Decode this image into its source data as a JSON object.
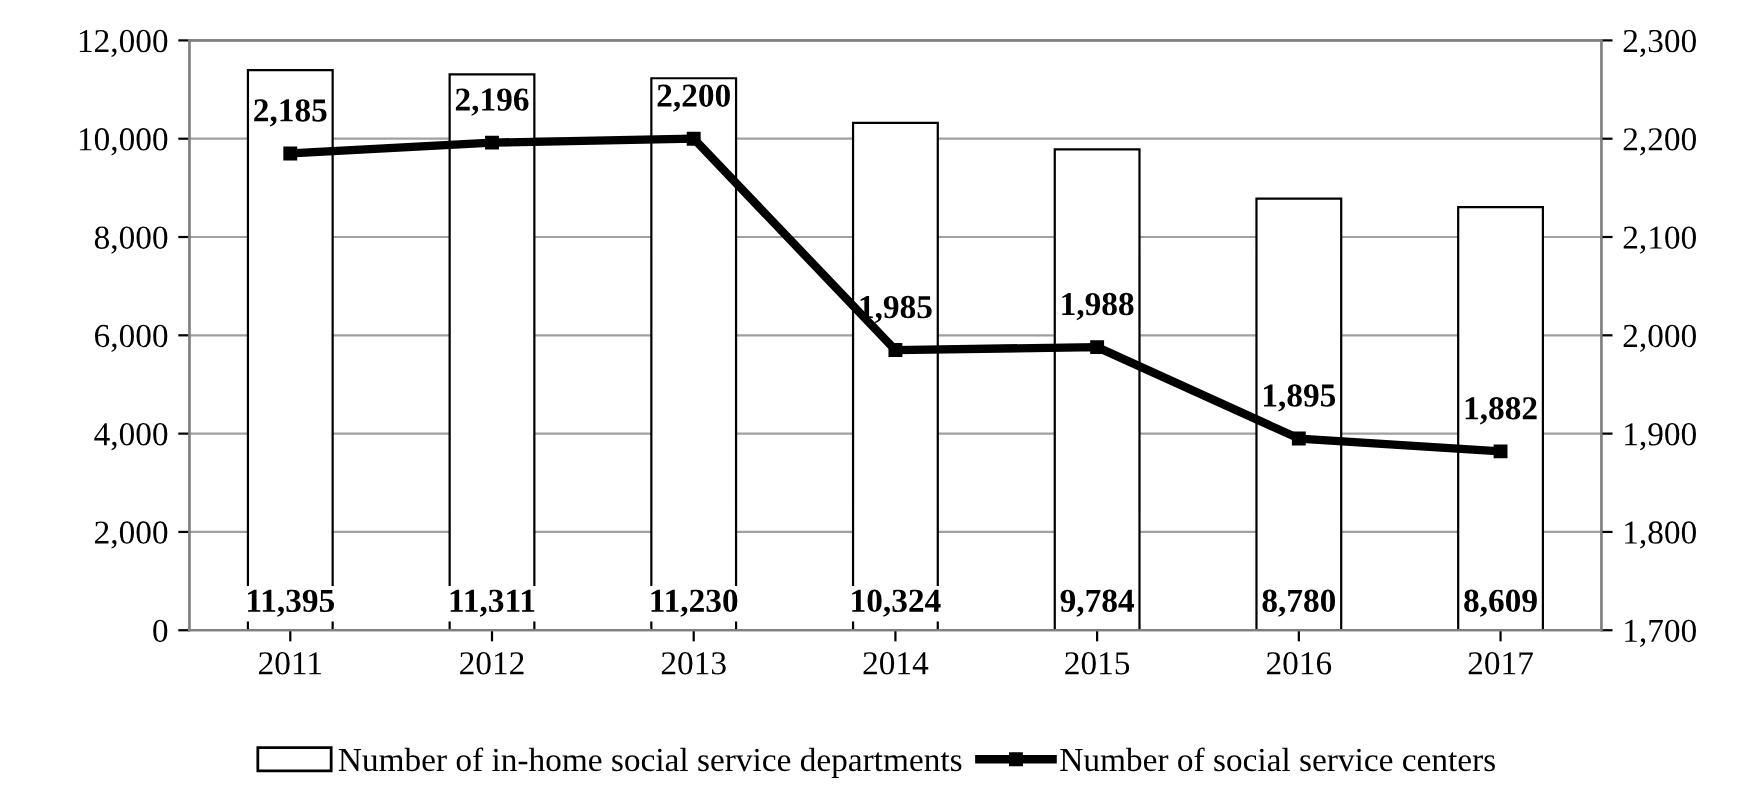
{
  "chart_data": {
    "type": "bar",
    "categories": [
      "2011",
      "2012",
      "2013",
      "2014",
      "2015",
      "2016",
      "2017"
    ],
    "series": [
      {
        "name": "Number of in-home social service departments",
        "color": "#ffffff",
        "values": [
          11395,
          11311,
          11230,
          10324,
          9784,
          8780,
          8609
        ],
        "value_labels": [
          "11,395",
          "11,311",
          "11,230",
          "10,324",
          "9,784",
          "8,780",
          "8,609"
        ]
      },
      {
        "name": "Number of social service centers",
        "type": "line",
        "axis": "y2",
        "color": "#000000",
        "marker": "square",
        "values": [
          2185,
          2196,
          2200,
          1985,
          1988,
          1895,
          1882
        ],
        "value_labels": [
          "2,185",
          "2,196",
          "2,200",
          "1,985",
          "1,988",
          "1,895",
          "1,882"
        ]
      }
    ],
    "ylim": [
      0,
      12000
    ],
    "yticks": [
      {
        "value": 0,
        "label": "0"
      },
      {
        "value": 2000,
        "label": "2,000"
      },
      {
        "value": 4000,
        "label": "4,000"
      },
      {
        "value": 6000,
        "label": "6,000"
      },
      {
        "value": 8000,
        "label": "8,000"
      },
      {
        "value": 10000,
        "label": "10,000"
      },
      {
        "value": 12000,
        "label": "12,000"
      }
    ],
    "y2lim": [
      1700,
      2300
    ],
    "y2ticks": [
      {
        "value": 1700,
        "label": "1,700"
      },
      {
        "value": 1800,
        "label": "1,800"
      },
      {
        "value": 1900,
        "label": "1,900"
      },
      {
        "value": 2000,
        "label": "2,000"
      },
      {
        "value": 2100,
        "label": "2,100"
      },
      {
        "value": 2200,
        "label": "2,200"
      },
      {
        "value": 2300,
        "label": "2,300"
      }
    ],
    "grid": "y",
    "legend": "bottom"
  }
}
